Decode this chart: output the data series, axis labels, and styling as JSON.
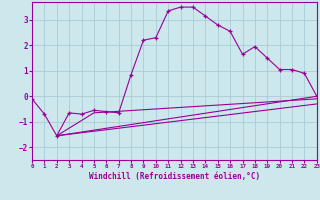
{
  "xlabel": "Windchill (Refroidissement éolien,°C)",
  "background_color": "#cce8ed",
  "grid_color": "#aaccd4",
  "line_color": "#990099",
  "xlim": [
    0,
    23
  ],
  "ylim": [
    -2.5,
    3.7
  ],
  "xticks": [
    0,
    1,
    2,
    3,
    4,
    5,
    6,
    7,
    8,
    9,
    10,
    11,
    12,
    13,
    14,
    15,
    16,
    17,
    18,
    19,
    20,
    21,
    22,
    23
  ],
  "yticks": [
    -2,
    -1,
    0,
    1,
    2,
    3
  ],
  "curve1_x": [
    0,
    1,
    2,
    3,
    4,
    5,
    6,
    7,
    8,
    9,
    10,
    11,
    12,
    13,
    14,
    15,
    16,
    17,
    18,
    19,
    20,
    21,
    22,
    23
  ],
  "curve1_y": [
    -0.1,
    -0.7,
    -1.55,
    -0.65,
    -0.7,
    -0.55,
    -0.6,
    -0.65,
    0.85,
    2.2,
    2.3,
    3.35,
    3.5,
    3.5,
    3.15,
    2.8,
    2.55,
    1.65,
    1.95,
    1.5,
    1.05,
    1.05,
    0.9,
    0.0
  ],
  "fan_line1_x": [
    2,
    23
  ],
  "fan_line1_y": [
    -1.55,
    0.0
  ],
  "fan_line2_x": [
    2,
    23
  ],
  "fan_line2_y": [
    -1.55,
    -0.3
  ],
  "fan_line3_x": [
    2,
    5,
    23
  ],
  "fan_line3_y": [
    -1.55,
    -0.65,
    -0.1
  ]
}
